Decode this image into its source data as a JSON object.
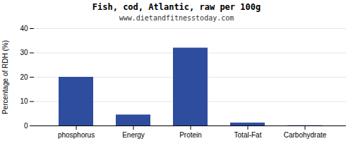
{
  "chart_data": {
    "type": "bar",
    "title": "Fish, cod, Atlantic, raw per 100g",
    "subtitle": "www.dietandfitnesstoday.com",
    "categories": [
      "phosphorus",
      "Energy",
      "Protein",
      "Total-Fat",
      "Carbohydrate"
    ],
    "values": [
      20,
      4.5,
      32,
      1.2,
      0.1
    ],
    "color": "#2e4d9e",
    "ylabel": "Percentage of RDH (%)",
    "ylim": [
      0,
      40
    ],
    "yticks": [
      0,
      10,
      20,
      30,
      40
    ],
    "grid": true
  }
}
